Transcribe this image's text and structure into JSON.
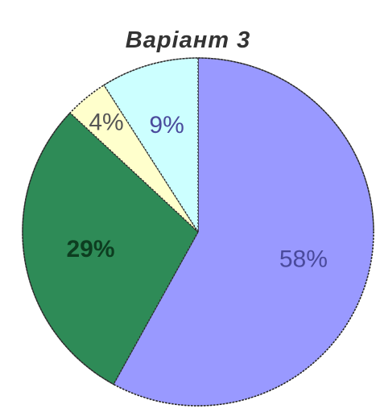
{
  "chart_data": {
    "type": "pie",
    "title": "Варіант 3",
    "start_angle_deg": 0,
    "direction": "clockwise",
    "slices": [
      {
        "label": "58%",
        "value": 58,
        "color": "#9999ff",
        "label_color": "#4a4a9c"
      },
      {
        "label": "29%",
        "value": 29,
        "color": "#2e8b57",
        "label_color": "#0d3d20"
      },
      {
        "label": "4%",
        "value": 4,
        "color": "#ffffcc",
        "label_color": "#555555"
      },
      {
        "label": "9%",
        "value": 9,
        "color": "#ccffff",
        "label_color": "#4a4a9c"
      }
    ]
  }
}
